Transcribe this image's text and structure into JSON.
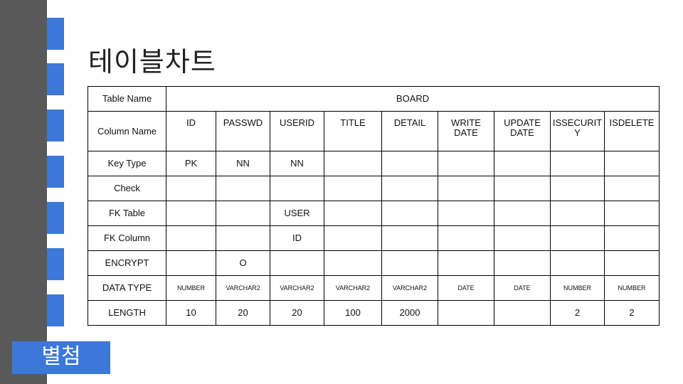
{
  "title": "테이블차트",
  "appendix_label": "별첨",
  "colors": {
    "sidebar": "#595959",
    "accent": "#3c78d8"
  },
  "table": {
    "table_name_label": "Table Name",
    "table_name": "BOARD",
    "rows": [
      {
        "label": "Column Name",
        "cells": [
          "ID",
          "PASSWD",
          "USERID",
          "TITLE",
          "DETAIL",
          "WRITE DATE",
          "UPDATE DATE",
          "ISSECURITY",
          "ISDELETE"
        ]
      },
      {
        "label": "Key Type",
        "cells": [
          "PK",
          "NN",
          "NN",
          "",
          "",
          "",
          "",
          "",
          ""
        ]
      },
      {
        "label": "Check",
        "cells": [
          "",
          "",
          "",
          "",
          "",
          "",
          "",
          "",
          ""
        ]
      },
      {
        "label": "FK Table",
        "cells": [
          "",
          "",
          "USER",
          "",
          "",
          "",
          "",
          "",
          ""
        ]
      },
      {
        "label": "FK Column",
        "cells": [
          "",
          "",
          "ID",
          "",
          "",
          "",
          "",
          "",
          ""
        ]
      },
      {
        "label": "ENCRYPT",
        "cells": [
          "",
          "O",
          "",
          "",
          "",
          "",
          "",
          "",
          ""
        ]
      },
      {
        "label": "DATA TYPE",
        "cells": [
          "NUMBER",
          "VARCHAR2",
          "VARCHAR2",
          "VARCHAR2",
          "VARCHAR2",
          "DATE",
          "DATE",
          "NUMBER",
          "NUMBER"
        ]
      },
      {
        "label": "LENGTH",
        "cells": [
          "10",
          "20",
          "20",
          "100",
          "2000",
          "",
          "",
          "2",
          "2"
        ]
      }
    ]
  }
}
